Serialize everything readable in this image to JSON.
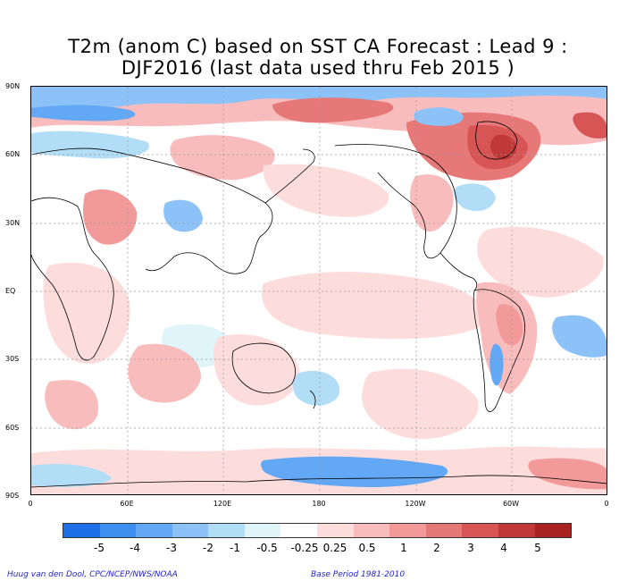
{
  "title_line1": "T2m (anom C) based on SST CA Forecast : Lead 9 :",
  "title_line2": "DJF2016 (last data used thru Feb 2015 )",
  "lat_labels": [
    "90N",
    "60N",
    "30N",
    "EQ",
    "30S",
    "60S",
    "90S"
  ],
  "lon_labels": [
    "0",
    "60E",
    "120E",
    "180",
    "120W",
    "60W",
    "0"
  ],
  "colorbar": {
    "colors": [
      "#1f6fe6",
      "#3d8ff0",
      "#62a8f5",
      "#8cc2f7",
      "#b2ddf7",
      "#dff5f9",
      "#ffffff",
      "#fddcdc",
      "#f8bcbc",
      "#f29a9a",
      "#e77878",
      "#d85555",
      "#c13838",
      "#a82222"
    ],
    "labels": [
      "-5",
      "-4",
      "-3",
      "-2",
      "-1",
      "-0.5",
      "-0.25",
      "0.25",
      "0.5",
      "1",
      "2",
      "3",
      "4",
      "5"
    ]
  },
  "credit": "Huug van den Dool, CPC/NCEP/NWS/NOAA",
  "base_period": "Base Period 1981-2010"
}
